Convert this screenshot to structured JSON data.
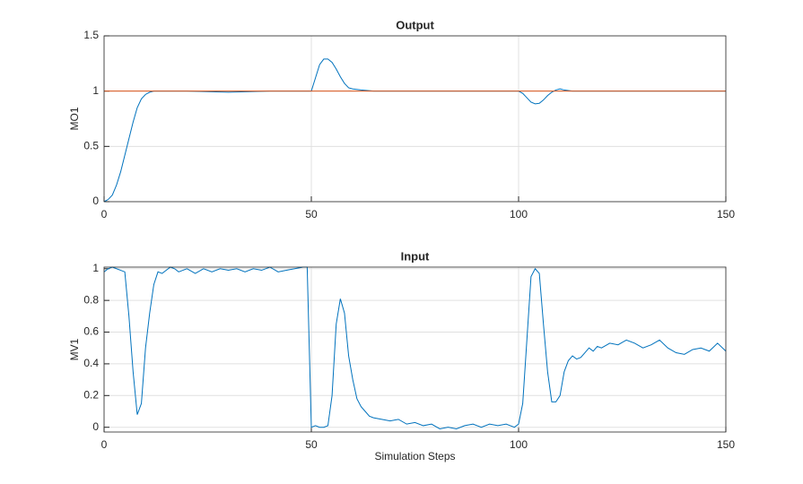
{
  "chart_data": [
    {
      "type": "line",
      "title": "Output",
      "ylabel": "MO1",
      "x": [
        0,
        1,
        2,
        3,
        4,
        5,
        6,
        7,
        8,
        9,
        10,
        11,
        12,
        15,
        20,
        30,
        40,
        49,
        50,
        51,
        52,
        53,
        54,
        55,
        56,
        57,
        58,
        59,
        60,
        62,
        65,
        80,
        99,
        100,
        101,
        102,
        103,
        104,
        105,
        106,
        107,
        108,
        109,
        110,
        111,
        113,
        120,
        130,
        140,
        150
      ],
      "series": [
        {
          "color": "#0072bd",
          "values": [
            0,
            0.02,
            0.06,
            0.15,
            0.27,
            0.42,
            0.57,
            0.72,
            0.85,
            0.93,
            0.97,
            0.99,
            1.0,
            1.0,
            1.0,
            0.99,
            1.0,
            1.0,
            1.0,
            1.12,
            1.24,
            1.29,
            1.29,
            1.26,
            1.2,
            1.13,
            1.07,
            1.03,
            1.02,
            1.01,
            1.0,
            1.0,
            1.0,
            1.0,
            0.98,
            0.94,
            0.9,
            0.885,
            0.89,
            0.92,
            0.96,
            0.99,
            1.01,
            1.02,
            1.01,
            1.0,
            1.0,
            1.0,
            1.0,
            1.0
          ]
        },
        {
          "color": "#d95319",
          "values": [
            1,
            1,
            1,
            1,
            1,
            1,
            1,
            1,
            1,
            1,
            1,
            1,
            1,
            1,
            1,
            1,
            1,
            1,
            1,
            1,
            1,
            1,
            1,
            1,
            1,
            1,
            1,
            1,
            1,
            1,
            1,
            1,
            1,
            1,
            1,
            1,
            1,
            1,
            1,
            1,
            1,
            1,
            1,
            1,
            1,
            1,
            1,
            1,
            1,
            1
          ]
        }
      ],
      "xlim": [
        0,
        150
      ],
      "xticks": [
        0,
        50,
        100,
        150
      ],
      "ylim": [
        0,
        1.5
      ],
      "yticks": [
        0,
        0.5,
        1,
        1.5
      ],
      "grid": true
    },
    {
      "type": "line",
      "title": "Input",
      "ylabel": "MV1",
      "xlabel": "Simulation Steps",
      "x": [
        0,
        1,
        2,
        3,
        4,
        5,
        6,
        7,
        8,
        9,
        10,
        11,
        12,
        13,
        14,
        15,
        16,
        17,
        18,
        19,
        20,
        22,
        24,
        26,
        28,
        30,
        32,
        34,
        36,
        38,
        40,
        42,
        44,
        46,
        48,
        49,
        50,
        51,
        52,
        53,
        54,
        55,
        56,
        57,
        58,
        59,
        60,
        61,
        62,
        63,
        64,
        65,
        67,
        69,
        71,
        73,
        75,
        77,
        79,
        81,
        83,
        85,
        87,
        89,
        91,
        93,
        95,
        97,
        99,
        100,
        101,
        102,
        103,
        104,
        105,
        106,
        107,
        108,
        109,
        110,
        111,
        112,
        113,
        114,
        115,
        116,
        117,
        118,
        119,
        120,
        122,
        124,
        126,
        128,
        130,
        132,
        134,
        136,
        138,
        140,
        142,
        144,
        146,
        148,
        150
      ],
      "series": [
        {
          "color": "#0072bd",
          "values": [
            0.98,
            1.0,
            1.01,
            1.0,
            0.99,
            0.98,
            0.7,
            0.35,
            0.08,
            0.15,
            0.5,
            0.72,
            0.9,
            0.98,
            0.97,
            0.99,
            1.01,
            1.0,
            0.98,
            0.99,
            1.0,
            0.97,
            1.0,
            0.98,
            1.0,
            0.99,
            1.0,
            0.98,
            1.0,
            0.99,
            1.01,
            0.98,
            0.99,
            1.0,
            1.01,
            1.01,
            0.0,
            0.01,
            0.0,
            0.0,
            0.01,
            0.2,
            0.65,
            0.81,
            0.72,
            0.45,
            0.3,
            0.18,
            0.13,
            0.1,
            0.07,
            0.06,
            0.05,
            0.04,
            0.05,
            0.02,
            0.03,
            0.01,
            0.02,
            -0.01,
            0.0,
            -0.01,
            0.01,
            0.02,
            0.0,
            0.02,
            0.01,
            0.02,
            0.0,
            0.02,
            0.15,
            0.55,
            0.95,
            1.0,
            0.97,
            0.65,
            0.35,
            0.16,
            0.16,
            0.2,
            0.35,
            0.42,
            0.45,
            0.43,
            0.44,
            0.47,
            0.5,
            0.48,
            0.51,
            0.5,
            0.53,
            0.52,
            0.55,
            0.53,
            0.5,
            0.52,
            0.55,
            0.5,
            0.47,
            0.46,
            0.49,
            0.5,
            0.48,
            0.53,
            0.48
          ]
        }
      ],
      "xlim": [
        0,
        150
      ],
      "xticks": [
        0,
        50,
        100,
        150
      ],
      "ylim": [
        -0.03,
        1.01
      ],
      "yticks": [
        0,
        0.2,
        0.4,
        0.6,
        0.8,
        1
      ],
      "grid": true
    }
  ]
}
